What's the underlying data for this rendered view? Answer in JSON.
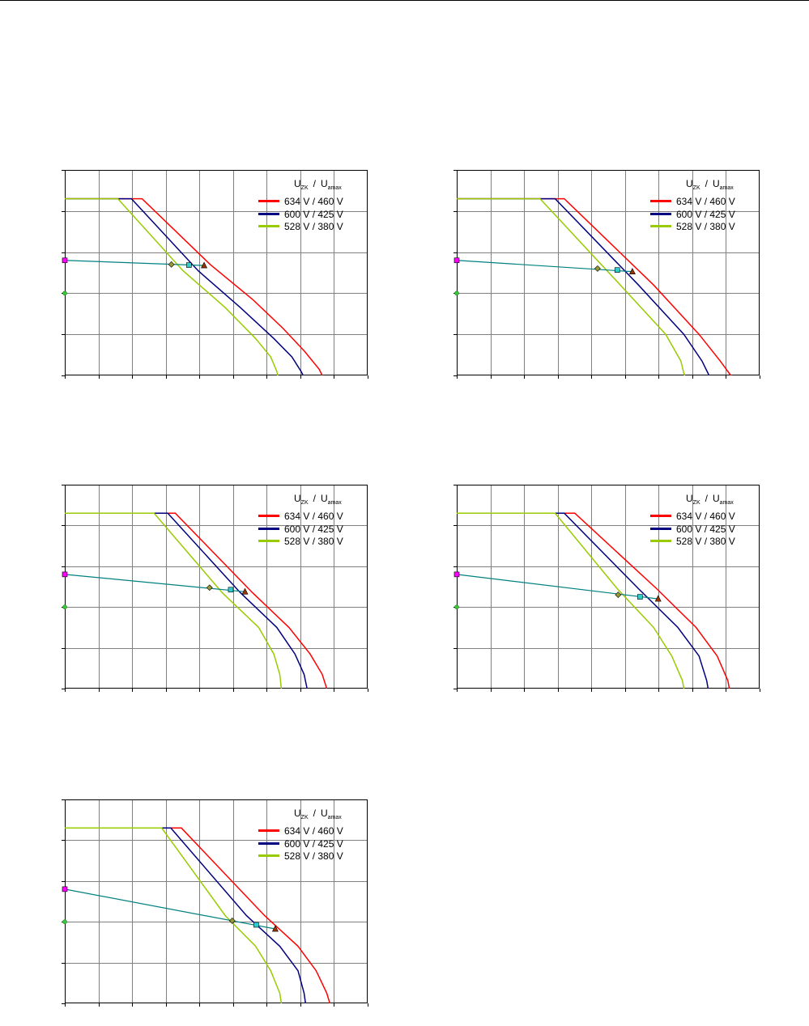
{
  "legend": {
    "title_main_1": "U",
    "title_sub_1": "ZK",
    "title_sep": "/",
    "title_main_2": "U",
    "title_sub_2": "amax",
    "entries": [
      {
        "label": "634 V / 460 V",
        "color": "#ff0000"
      },
      {
        "label": "600 V / 425 V",
        "color": "#000080"
      },
      {
        "label": "528 V / 380 V",
        "color": "#99cc00"
      }
    ]
  },
  "colors": {
    "load_line": "#008080",
    "marker_magenta": "#ff00ff",
    "marker_green": "#33cc33",
    "marker_cyan": "#33cccc",
    "marker_brown": "#993300",
    "marker_olive": "#999933",
    "grid": "#808080"
  },
  "chart_data": [
    {
      "type": "line",
      "xlim": [
        0,
        1
      ],
      "ylim": [
        0,
        1
      ],
      "series": [
        {
          "color": "#ff0000",
          "x": [
            0,
            0.255,
            0.48,
            0.62,
            0.72,
            0.79,
            0.84,
            0.85
          ],
          "y": [
            0.86,
            0.86,
            0.54,
            0.37,
            0.23,
            0.12,
            0.03,
            0.0
          ]
        },
        {
          "color": "#000080",
          "x": [
            0,
            0.22,
            0.44,
            0.58,
            0.69,
            0.75,
            0.78,
            0.787
          ],
          "y": [
            0.86,
            0.86,
            0.51,
            0.33,
            0.18,
            0.09,
            0.02,
            0.0
          ]
        },
        {
          "color": "#99cc00",
          "x": [
            0,
            0.175,
            0.39,
            0.53,
            0.63,
            0.68,
            0.7,
            0.703
          ],
          "y": [
            0.86,
            0.86,
            0.51,
            0.33,
            0.18,
            0.09,
            0.02,
            0.0
          ]
        }
      ],
      "load_line": {
        "x": [
          0,
          0.46
        ],
        "y": [
          0.56,
          0.535
        ]
      },
      "axis_markers": {
        "magenta_y": 0.56,
        "green_y": 0.4
      },
      "operating_points": [
        {
          "marker": "olive-diamond",
          "x": 0.352,
          "y": 0.54
        },
        {
          "marker": "cyan-square",
          "x": 0.41,
          "y": 0.537
        },
        {
          "marker": "brown-triangle",
          "x": 0.46,
          "y": 0.535
        }
      ]
    },
    {
      "type": "line",
      "xlim": [
        0,
        1
      ],
      "ylim": [
        0,
        1
      ],
      "series": [
        {
          "color": "#ff0000",
          "x": [
            0,
            0.355,
            0.65,
            0.8,
            0.87,
            0.9,
            0.905
          ],
          "y": [
            0.86,
            0.86,
            0.44,
            0.2,
            0.07,
            0.01,
            0.0
          ]
        },
        {
          "color": "#000080",
          "x": [
            0,
            0.325,
            0.6,
            0.75,
            0.81,
            0.83,
            0.833
          ],
          "y": [
            0.86,
            0.86,
            0.44,
            0.2,
            0.07,
            0.01,
            0.0
          ]
        },
        {
          "color": "#99cc00",
          "x": [
            0,
            0.275,
            0.54,
            0.69,
            0.74,
            0.75,
            0.753
          ],
          "y": [
            0.86,
            0.86,
            0.44,
            0.2,
            0.07,
            0.01,
            0.0
          ]
        }
      ],
      "load_line": {
        "x": [
          0,
          0.58
        ],
        "y": [
          0.56,
          0.505
        ]
      },
      "axis_markers": {
        "magenta_y": 0.56,
        "green_y": 0.4
      },
      "operating_points": [
        {
          "marker": "olive-diamond",
          "x": 0.465,
          "y": 0.52
        },
        {
          "marker": "cyan-square",
          "x": 0.53,
          "y": 0.513
        },
        {
          "marker": "brown-triangle",
          "x": 0.58,
          "y": 0.505
        }
      ]
    },
    {
      "type": "line",
      "xlim": [
        0,
        1
      ],
      "ylim": [
        0,
        1
      ],
      "series": [
        {
          "color": "#ff0000",
          "x": [
            0,
            0.365,
            0.62,
            0.74,
            0.81,
            0.85,
            0.865
          ],
          "y": [
            0.86,
            0.86,
            0.47,
            0.3,
            0.17,
            0.07,
            0.0
          ]
        },
        {
          "color": "#000080",
          "x": [
            0,
            0.34,
            0.58,
            0.7,
            0.76,
            0.79,
            0.8
          ],
          "y": [
            0.86,
            0.86,
            0.47,
            0.3,
            0.17,
            0.07,
            0.0
          ]
        },
        {
          "color": "#99cc00",
          "x": [
            0,
            0.295,
            0.52,
            0.64,
            0.69,
            0.71,
            0.715
          ],
          "y": [
            0.86,
            0.86,
            0.47,
            0.3,
            0.17,
            0.07,
            0.0
          ]
        }
      ],
      "load_line": {
        "x": [
          0,
          0.595
        ],
        "y": [
          0.56,
          0.475
        ]
      },
      "axis_markers": {
        "magenta_y": 0.56,
        "green_y": 0.4
      },
      "operating_points": [
        {
          "marker": "olive-diamond",
          "x": 0.478,
          "y": 0.495
        },
        {
          "marker": "cyan-square",
          "x": 0.548,
          "y": 0.485
        },
        {
          "marker": "brown-triangle",
          "x": 0.595,
          "y": 0.475
        }
      ]
    },
    {
      "type": "line",
      "xlim": [
        0,
        1
      ],
      "ylim": [
        0,
        1
      ],
      "series": [
        {
          "color": "#ff0000",
          "x": [
            0,
            0.39,
            0.66,
            0.79,
            0.86,
            0.895,
            0.9
          ],
          "y": [
            0.86,
            0.86,
            0.49,
            0.3,
            0.16,
            0.04,
            0.0
          ]
        },
        {
          "color": "#000080",
          "x": [
            0,
            0.355,
            0.6,
            0.73,
            0.8,
            0.825,
            0.83
          ],
          "y": [
            0.86,
            0.86,
            0.49,
            0.3,
            0.16,
            0.04,
            0.0
          ]
        },
        {
          "color": "#99cc00",
          "x": [
            0,
            0.325,
            0.53,
            0.65,
            0.71,
            0.745,
            0.75
          ],
          "y": [
            0.86,
            0.86,
            0.49,
            0.3,
            0.16,
            0.04,
            0.0
          ]
        }
      ],
      "load_line": {
        "x": [
          0,
          0.665
        ],
        "y": [
          0.56,
          0.44
        ]
      },
      "axis_markers": {
        "magenta_y": 0.56,
        "green_y": 0.4
      },
      "operating_points": [
        {
          "marker": "olive-diamond",
          "x": 0.533,
          "y": 0.46
        },
        {
          "marker": "cyan-square",
          "x": 0.605,
          "y": 0.45
        },
        {
          "marker": "brown-triangle",
          "x": 0.665,
          "y": 0.44
        }
      ]
    },
    {
      "type": "line",
      "xlim": [
        0,
        1
      ],
      "ylim": [
        0,
        1
      ],
      "series": [
        {
          "color": "#ff0000",
          "x": [
            0,
            0.385,
            0.66,
            0.77,
            0.83,
            0.865,
            0.875
          ],
          "y": [
            0.86,
            0.86,
            0.43,
            0.28,
            0.16,
            0.05,
            0.0
          ]
        },
        {
          "color": "#000080",
          "x": [
            0,
            0.35,
            0.6,
            0.71,
            0.77,
            0.79,
            0.795
          ],
          "y": [
            0.86,
            0.86,
            0.43,
            0.28,
            0.16,
            0.05,
            0.0
          ]
        },
        {
          "color": "#99cc00",
          "x": [
            0,
            0.32,
            0.53,
            0.63,
            0.68,
            0.71,
            0.715
          ],
          "y": [
            0.86,
            0.86,
            0.43,
            0.28,
            0.16,
            0.05,
            0.0
          ]
        }
      ],
      "load_line": {
        "x": [
          0,
          0.695
        ],
        "y": [
          0.56,
          0.365
        ]
      },
      "axis_markers": {
        "magenta_y": 0.56,
        "green_y": 0.4
      },
      "operating_points": [
        {
          "marker": "olive-diamond",
          "x": 0.553,
          "y": 0.405
        },
        {
          "marker": "cyan-square",
          "x": 0.632,
          "y": 0.385
        },
        {
          "marker": "brown-triangle",
          "x": 0.695,
          "y": 0.365
        }
      ]
    }
  ]
}
